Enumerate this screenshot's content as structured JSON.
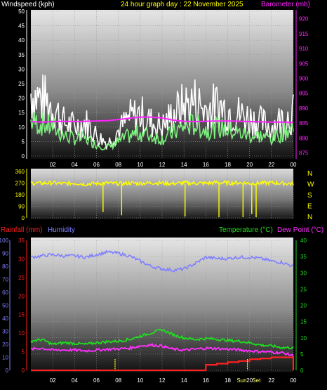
{
  "header": {
    "wind_label": "Windspeed (kph)",
    "graph_title": "24 hour graph day : 22 November 2025",
    "baro_label": "Barometer (mb)"
  },
  "panel3_header": {
    "rain_label": "Rainfall (mm)",
    "hum_label": "Humidity",
    "temp_label": "Temperature (°C)",
    "dew_label": "Dew Point (°C)"
  },
  "compass": [
    "N",
    "W",
    "S",
    "E",
    "N"
  ],
  "colors": {
    "wind": "#ffffff",
    "gust": "#d0d0d0",
    "avg_wind": "#7cf07c",
    "barometer": "#ff22ff",
    "direction": "#ffff00",
    "rain": "#ff2020",
    "humidity": "#8080ff",
    "temperature": "#20dd20",
    "dewpoint": "#ff30ff",
    "grid": "#9a9a9a"
  },
  "chart_data": [
    {
      "type": "line",
      "name_panel": "wind-barometer",
      "x_ticks": [
        "02",
        "04",
        "06",
        "08",
        "10",
        "12",
        "14",
        "16",
        "18",
        "20",
        "22",
        "00"
      ],
      "y_left_ticks": [
        0,
        5,
        10,
        15,
        20,
        25,
        30,
        35,
        40,
        45,
        50
      ],
      "y_left_range": [
        0,
        50
      ],
      "y_right_ticks": [
        875,
        880,
        885,
        890,
        895,
        900,
        905,
        910,
        915,
        920
      ],
      "y_right_range": [
        873,
        923
      ],
      "hours": [
        0,
        1,
        2,
        3,
        4,
        5,
        6,
        7,
        8,
        9,
        10,
        11,
        12,
        13,
        14,
        15,
        16,
        17,
        18,
        19,
        20,
        21,
        22,
        23,
        24
      ],
      "series": [
        {
          "name": "Windspeed (kph)",
          "axis": "left",
          "values": [
            30,
            27,
            24,
            16,
            14,
            16,
            10,
            6,
            12,
            18,
            20,
            16,
            14,
            20,
            24,
            26,
            22,
            24,
            22,
            20,
            18,
            16,
            14,
            18,
            20
          ]
        },
        {
          "name": "",
          "axis": "left",
          "values": [
            12,
            11,
            10,
            7,
            6,
            6,
            4,
            3,
            5,
            7,
            8,
            7,
            6,
            8,
            10,
            11,
            9,
            10,
            9,
            8,
            7,
            7,
            6,
            8,
            10
          ]
        },
        {
          "name": "Barometer (mb)",
          "axis": "right",
          "values": [
            885.5,
            885.3,
            885.5,
            885.6,
            885.5,
            885.6,
            885.7,
            885.8,
            886.2,
            886.6,
            887.0,
            887.0,
            886.7,
            886.0,
            885.6,
            885.5,
            885.6,
            885.7,
            885.7,
            885.6,
            885.5,
            885.4,
            885.3,
            885.3,
            885.2
          ]
        }
      ],
      "grid": true
    },
    {
      "type": "line",
      "name_panel": "wind-direction",
      "y_left_ticks": [
        0,
        90,
        180,
        270,
        360
      ],
      "y_left_range": [
        0,
        360
      ],
      "hours": [
        0,
        1,
        2,
        3,
        4,
        5,
        6,
        7,
        8,
        9,
        10,
        11,
        12,
        13,
        14,
        15,
        16,
        17,
        18,
        19,
        20,
        21,
        22,
        23,
        24
      ],
      "series": [
        {
          "name": "",
          "axis": "left",
          "values": [
            270,
            268,
            272,
            265,
            270,
            262,
            268,
            270,
            265,
            270,
            268,
            272,
            270,
            266,
            272,
            270,
            268,
            274,
            270,
            272,
            268,
            270,
            272,
            268,
            265
          ]
        }
      ],
      "dips": [
        {
          "hour": 6.6,
          "value": 45
        },
        {
          "hour": 8.3,
          "value": 20
        },
        {
          "hour": 14.1,
          "value": 10
        },
        {
          "hour": 17.2,
          "value": 5
        },
        {
          "hour": 19.4,
          "value": 5
        },
        {
          "hour": 20.2,
          "value": 30
        },
        {
          "hour": 20.6,
          "value": 5
        }
      ],
      "grid": true
    },
    {
      "type": "line",
      "name_panel": "rain-humidity-temp",
      "x_ticks": [
        "02",
        "04",
        "06",
        "08",
        "10",
        "12",
        "14",
        "16",
        "18",
        "Sun",
        "20",
        "Set",
        "22",
        "00"
      ],
      "y_hum_ticks": [
        0,
        10,
        20,
        30,
        40,
        50,
        60,
        70,
        80,
        90,
        100
      ],
      "y_hum_range": [
        0,
        100
      ],
      "y_rain_ticks": [
        0,
        5,
        10,
        15,
        20,
        25,
        30,
        35
      ],
      "y_rain_range": [
        0,
        35
      ],
      "y_temp_ticks": [
        0,
        5,
        10,
        15,
        20,
        25,
        30,
        35,
        40
      ],
      "y_temp_range": [
        0,
        40
      ],
      "hours": [
        0,
        1,
        2,
        3,
        4,
        5,
        6,
        7,
        8,
        9,
        10,
        11,
        12,
        13,
        14,
        15,
        16,
        17,
        18,
        19,
        20,
        21,
        22,
        23,
        24
      ],
      "series": [
        {
          "name": "Humidity",
          "axis": "hum",
          "values": [
            87,
            88,
            89,
            88,
            88,
            87,
            89,
            91,
            90,
            88,
            84,
            80,
            78,
            77,
            78,
            82,
            87,
            86,
            86,
            87,
            87,
            86,
            84,
            83,
            80
          ]
        },
        {
          "name": "Rainfall (mm)",
          "axis": "rain",
          "values": [
            0,
            0,
            0,
            0,
            0,
            0,
            0,
            0,
            0,
            0,
            0,
            0,
            0,
            0,
            0,
            0,
            1.5,
            1.8,
            2.2,
            2.5,
            3.0,
            3.2,
            3.5,
            3.5,
            0
          ]
        },
        {
          "name": "Temperature (°C)",
          "axis": "temp",
          "values": [
            9,
            9.5,
            8,
            8.5,
            8.3,
            8,
            8.5,
            8.8,
            9,
            9.5,
            10.5,
            11.5,
            12.5,
            11,
            10,
            9.5,
            9.8,
            9.6,
            9.2,
            9,
            8.5,
            7.8,
            7.5,
            7,
            7
          ]
        },
        {
          "name": "Dew Point (°C)",
          "axis": "temp",
          "values": [
            6.5,
            6.8,
            6.2,
            6.3,
            6.2,
            6,
            6.2,
            6.5,
            6.6,
            6.8,
            7.5,
            7.8,
            7.5,
            6.5,
            6.2,
            6.5,
            6.8,
            6.7,
            6.5,
            6.3,
            6,
            5.8,
            5.6,
            5.4,
            4.5
          ]
        }
      ],
      "markers": [
        {
          "hour": 7.7,
          "color": "#ffff00"
        },
        {
          "hour": 19.8,
          "color": "#ffff00"
        }
      ],
      "grid": true
    }
  ]
}
